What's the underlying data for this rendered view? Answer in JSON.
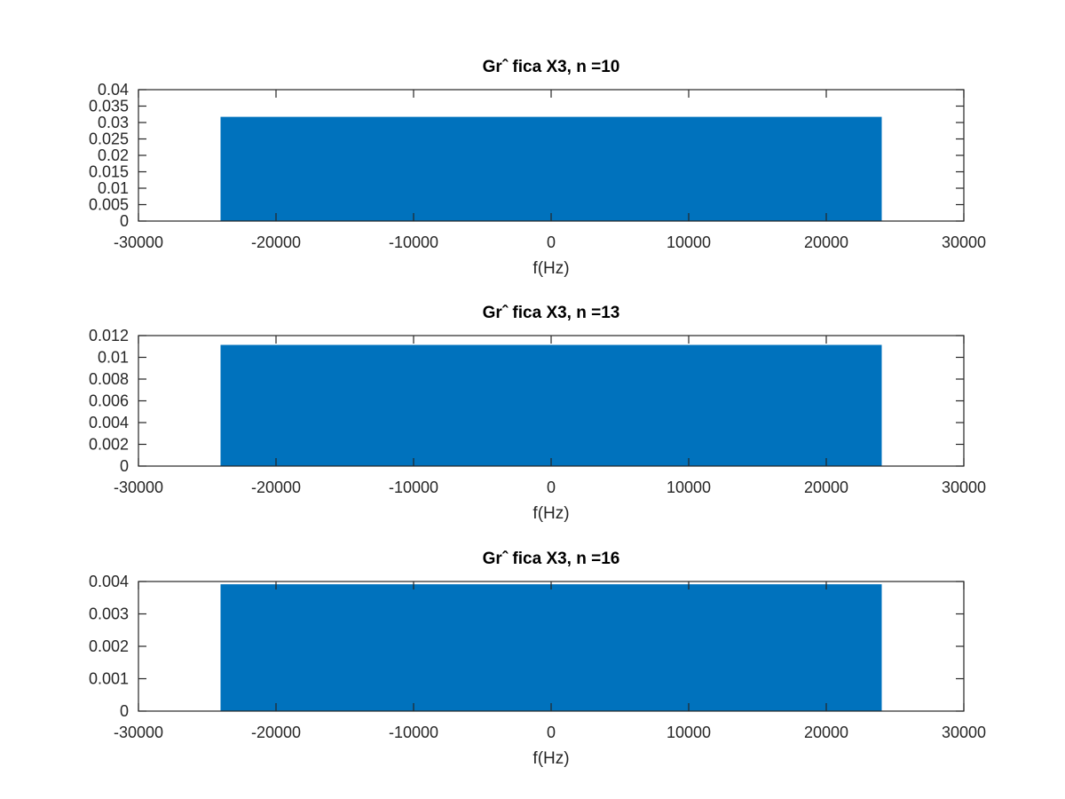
{
  "chart_data": [
    {
      "type": "area",
      "title": "Grˆ fica X3, n =10",
      "xlabel": "f(Hz)",
      "ylabel": "",
      "xlim": [
        -30000,
        30000
      ],
      "ylim": [
        0,
        0.04
      ],
      "xticks": [
        -30000,
        -20000,
        -10000,
        0,
        10000,
        20000,
        30000
      ],
      "xtick_labels": [
        "-30000",
        "-20000",
        "-10000",
        "0",
        "10000",
        "20000",
        "30000"
      ],
      "yticks": [
        0,
        0.005,
        0.01,
        0.015,
        0.02,
        0.025,
        0.03,
        0.035,
        0.04
      ],
      "ytick_labels": [
        "0",
        "0.005",
        "0.01",
        "0.015",
        "0.02",
        "0.025",
        "0.03",
        "0.035",
        "0.04"
      ],
      "series": [
        {
          "x": [
            -24000,
            -24000,
            24000,
            24000
          ],
          "y": [
            0,
            0.0316,
            0.0316,
            0
          ]
        }
      ],
      "color": "#0072BD",
      "grid": false
    },
    {
      "type": "area",
      "title": "Grˆ fica X3, n =13",
      "xlabel": "f(Hz)",
      "ylabel": "",
      "xlim": [
        -30000,
        30000
      ],
      "ylim": [
        0,
        0.012
      ],
      "xticks": [
        -30000,
        -20000,
        -10000,
        0,
        10000,
        20000,
        30000
      ],
      "xtick_labels": [
        "-30000",
        "-20000",
        "-10000",
        "0",
        "10000",
        "20000",
        "30000"
      ],
      "yticks": [
        0,
        0.002,
        0.004,
        0.006,
        0.008,
        0.01,
        0.012
      ],
      "ytick_labels": [
        "0",
        "0.002",
        "0.004",
        "0.006",
        "0.008",
        "0.01",
        "0.012"
      ],
      "series": [
        {
          "x": [
            -24000,
            -24000,
            24000,
            24000
          ],
          "y": [
            0,
            0.0111,
            0.0111,
            0
          ]
        }
      ],
      "color": "#0072BD",
      "grid": false
    },
    {
      "type": "area",
      "title": "Grˆ fica X3, n =16",
      "xlabel": "f(Hz)",
      "ylabel": "",
      "xlim": [
        -30000,
        30000
      ],
      "ylim": [
        0,
        0.004
      ],
      "xticks": [
        -30000,
        -20000,
        -10000,
        0,
        10000,
        20000,
        30000
      ],
      "xtick_labels": [
        "-30000",
        "-20000",
        "-10000",
        "0",
        "10000",
        "20000",
        "30000"
      ],
      "yticks": [
        0,
        0.001,
        0.002,
        0.003,
        0.004
      ],
      "ytick_labels": [
        "0",
        "0.001",
        "0.002",
        "0.003",
        "0.004"
      ],
      "series": [
        {
          "x": [
            -24000,
            -24000,
            24000,
            24000
          ],
          "y": [
            0,
            0.0039,
            0.0039,
            0
          ]
        }
      ],
      "color": "#0072BD",
      "grid": false
    }
  ]
}
